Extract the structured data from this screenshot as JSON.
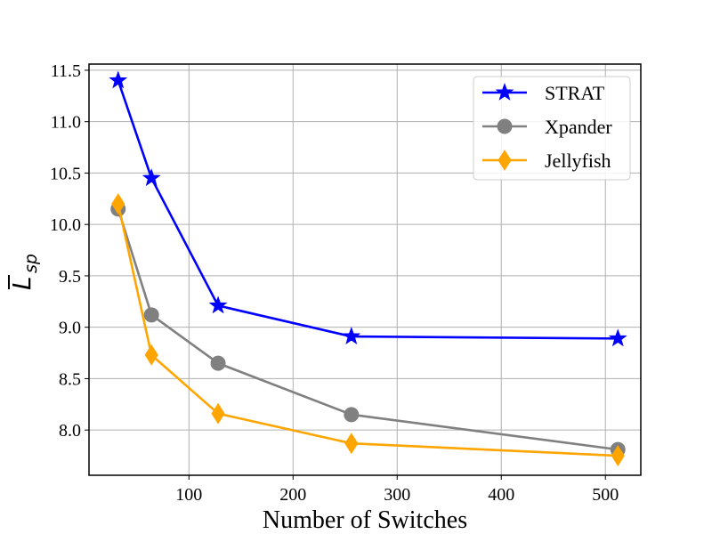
{
  "chart_data": {
    "type": "line",
    "xlabel": "Number of Switches",
    "ylabel": {
      "main": "L",
      "sub": "sp"
    },
    "xlim": [
      4,
      534
    ],
    "ylim": [
      7.56,
      11.56
    ],
    "xticks": [
      100,
      200,
      300,
      400,
      500
    ],
    "yticks": [
      8.0,
      8.5,
      9.0,
      9.5,
      10.0,
      10.5,
      11.0,
      11.5
    ],
    "grid": true,
    "legend_position": "top-right",
    "x": [
      32,
      64,
      128,
      256,
      512
    ],
    "series": [
      {
        "name": "STRAT",
        "color": "#0000ff",
        "marker": "star",
        "values": [
          11.4,
          10.45,
          9.21,
          8.91,
          8.89
        ]
      },
      {
        "name": "Xpander",
        "color": "#808080",
        "marker": "circle",
        "values": [
          10.15,
          9.12,
          8.65,
          8.15,
          7.81
        ]
      },
      {
        "name": "Jellyfish",
        "color": "#ffa500",
        "marker": "diamond",
        "values": [
          10.2,
          8.73,
          8.16,
          7.87,
          7.75
        ]
      }
    ]
  }
}
